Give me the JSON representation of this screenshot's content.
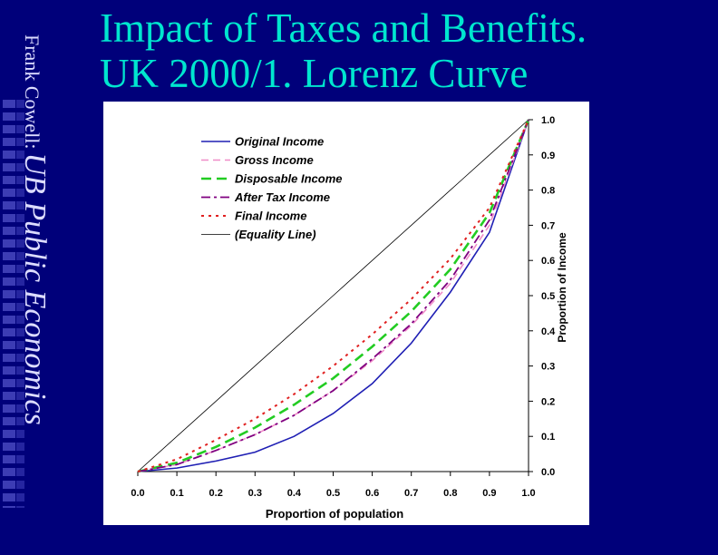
{
  "slide": {
    "author": "Frank Cowell:",
    "course": "UB Public Economics",
    "title_line1": "Impact of Taxes and Benefits.",
    "title_line2": "UK 2000/1. Lorenz Curve"
  },
  "colors": {
    "background": "#00007a",
    "title": "#00e6cf",
    "original": "#1f1fb4",
    "gross": "#f08cc8",
    "disposable": "#22cc22",
    "after_tax": "#800080",
    "final": "#e02020",
    "equality": "#000000"
  },
  "chart_data": {
    "type": "line",
    "xlabel": "Proportion of population",
    "ylabel": "Proportion of Income",
    "xlim": [
      0,
      1
    ],
    "ylim": [
      0,
      1
    ],
    "x_ticks": [
      "0.0",
      "0.1",
      "0.2",
      "0.3",
      "0.4",
      "0.5",
      "0.6",
      "0.7",
      "0.8",
      "0.9",
      "1.0"
    ],
    "y_ticks": [
      "0.0",
      "0.1",
      "0.2",
      "0.3",
      "0.4",
      "0.5",
      "0.6",
      "0.7",
      "0.8",
      "0.9",
      "1.0"
    ],
    "grid": false,
    "legend_position": "top-left",
    "x": [
      0.0,
      0.1,
      0.2,
      0.3,
      0.4,
      0.5,
      0.6,
      0.7,
      0.8,
      0.9,
      1.0
    ],
    "series": [
      {
        "name": "Original Income",
        "key": "original",
        "style": "solid",
        "values": [
          0.0,
          0.01,
          0.03,
          0.055,
          0.1,
          0.165,
          0.25,
          0.365,
          0.51,
          0.68,
          1.0
        ]
      },
      {
        "name": "Gross Income",
        "key": "gross",
        "style": "dash",
        "values": [
          0.0,
          0.02,
          0.06,
          0.105,
          0.16,
          0.23,
          0.315,
          0.415,
          0.535,
          0.7,
          1.0
        ]
      },
      {
        "name": "Disposable Income",
        "key": "disposable",
        "style": "longdash",
        "values": [
          0.0,
          0.025,
          0.07,
          0.125,
          0.19,
          0.265,
          0.355,
          0.455,
          0.575,
          0.735,
          1.0
        ]
      },
      {
        "name": "After Tax Income",
        "key": "after_tax",
        "style": "dashdot",
        "values": [
          0.0,
          0.02,
          0.06,
          0.105,
          0.16,
          0.23,
          0.32,
          0.42,
          0.545,
          0.715,
          1.0
        ]
      },
      {
        "name": "Final Income",
        "key": "final",
        "style": "dot",
        "values": [
          0.0,
          0.035,
          0.09,
          0.15,
          0.22,
          0.3,
          0.39,
          0.49,
          0.605,
          0.75,
          1.0
        ]
      },
      {
        "name": "(Equality Line)",
        "key": "equality",
        "style": "thin",
        "values": [
          0.0,
          0.1,
          0.2,
          0.3,
          0.4,
          0.5,
          0.6,
          0.7,
          0.8,
          0.9,
          1.0
        ]
      }
    ]
  }
}
